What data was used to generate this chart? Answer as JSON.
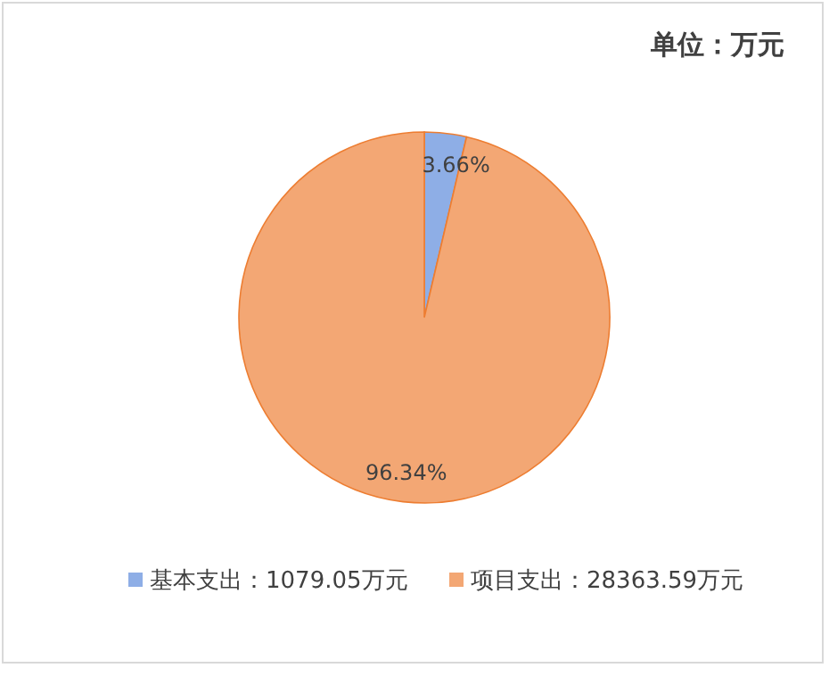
{
  "chart_data": {
    "type": "pie",
    "title": "单位：万元",
    "categories": [
      "基本支出：1079.05万元",
      "项目支出：28363.59万元"
    ],
    "values": [
      3.66,
      96.34
    ],
    "colors": [
      "#8eaee6",
      "#f3a774"
    ],
    "value_labels": [
      "3.66%",
      "96.34%"
    ],
    "legend": "bottom"
  }
}
